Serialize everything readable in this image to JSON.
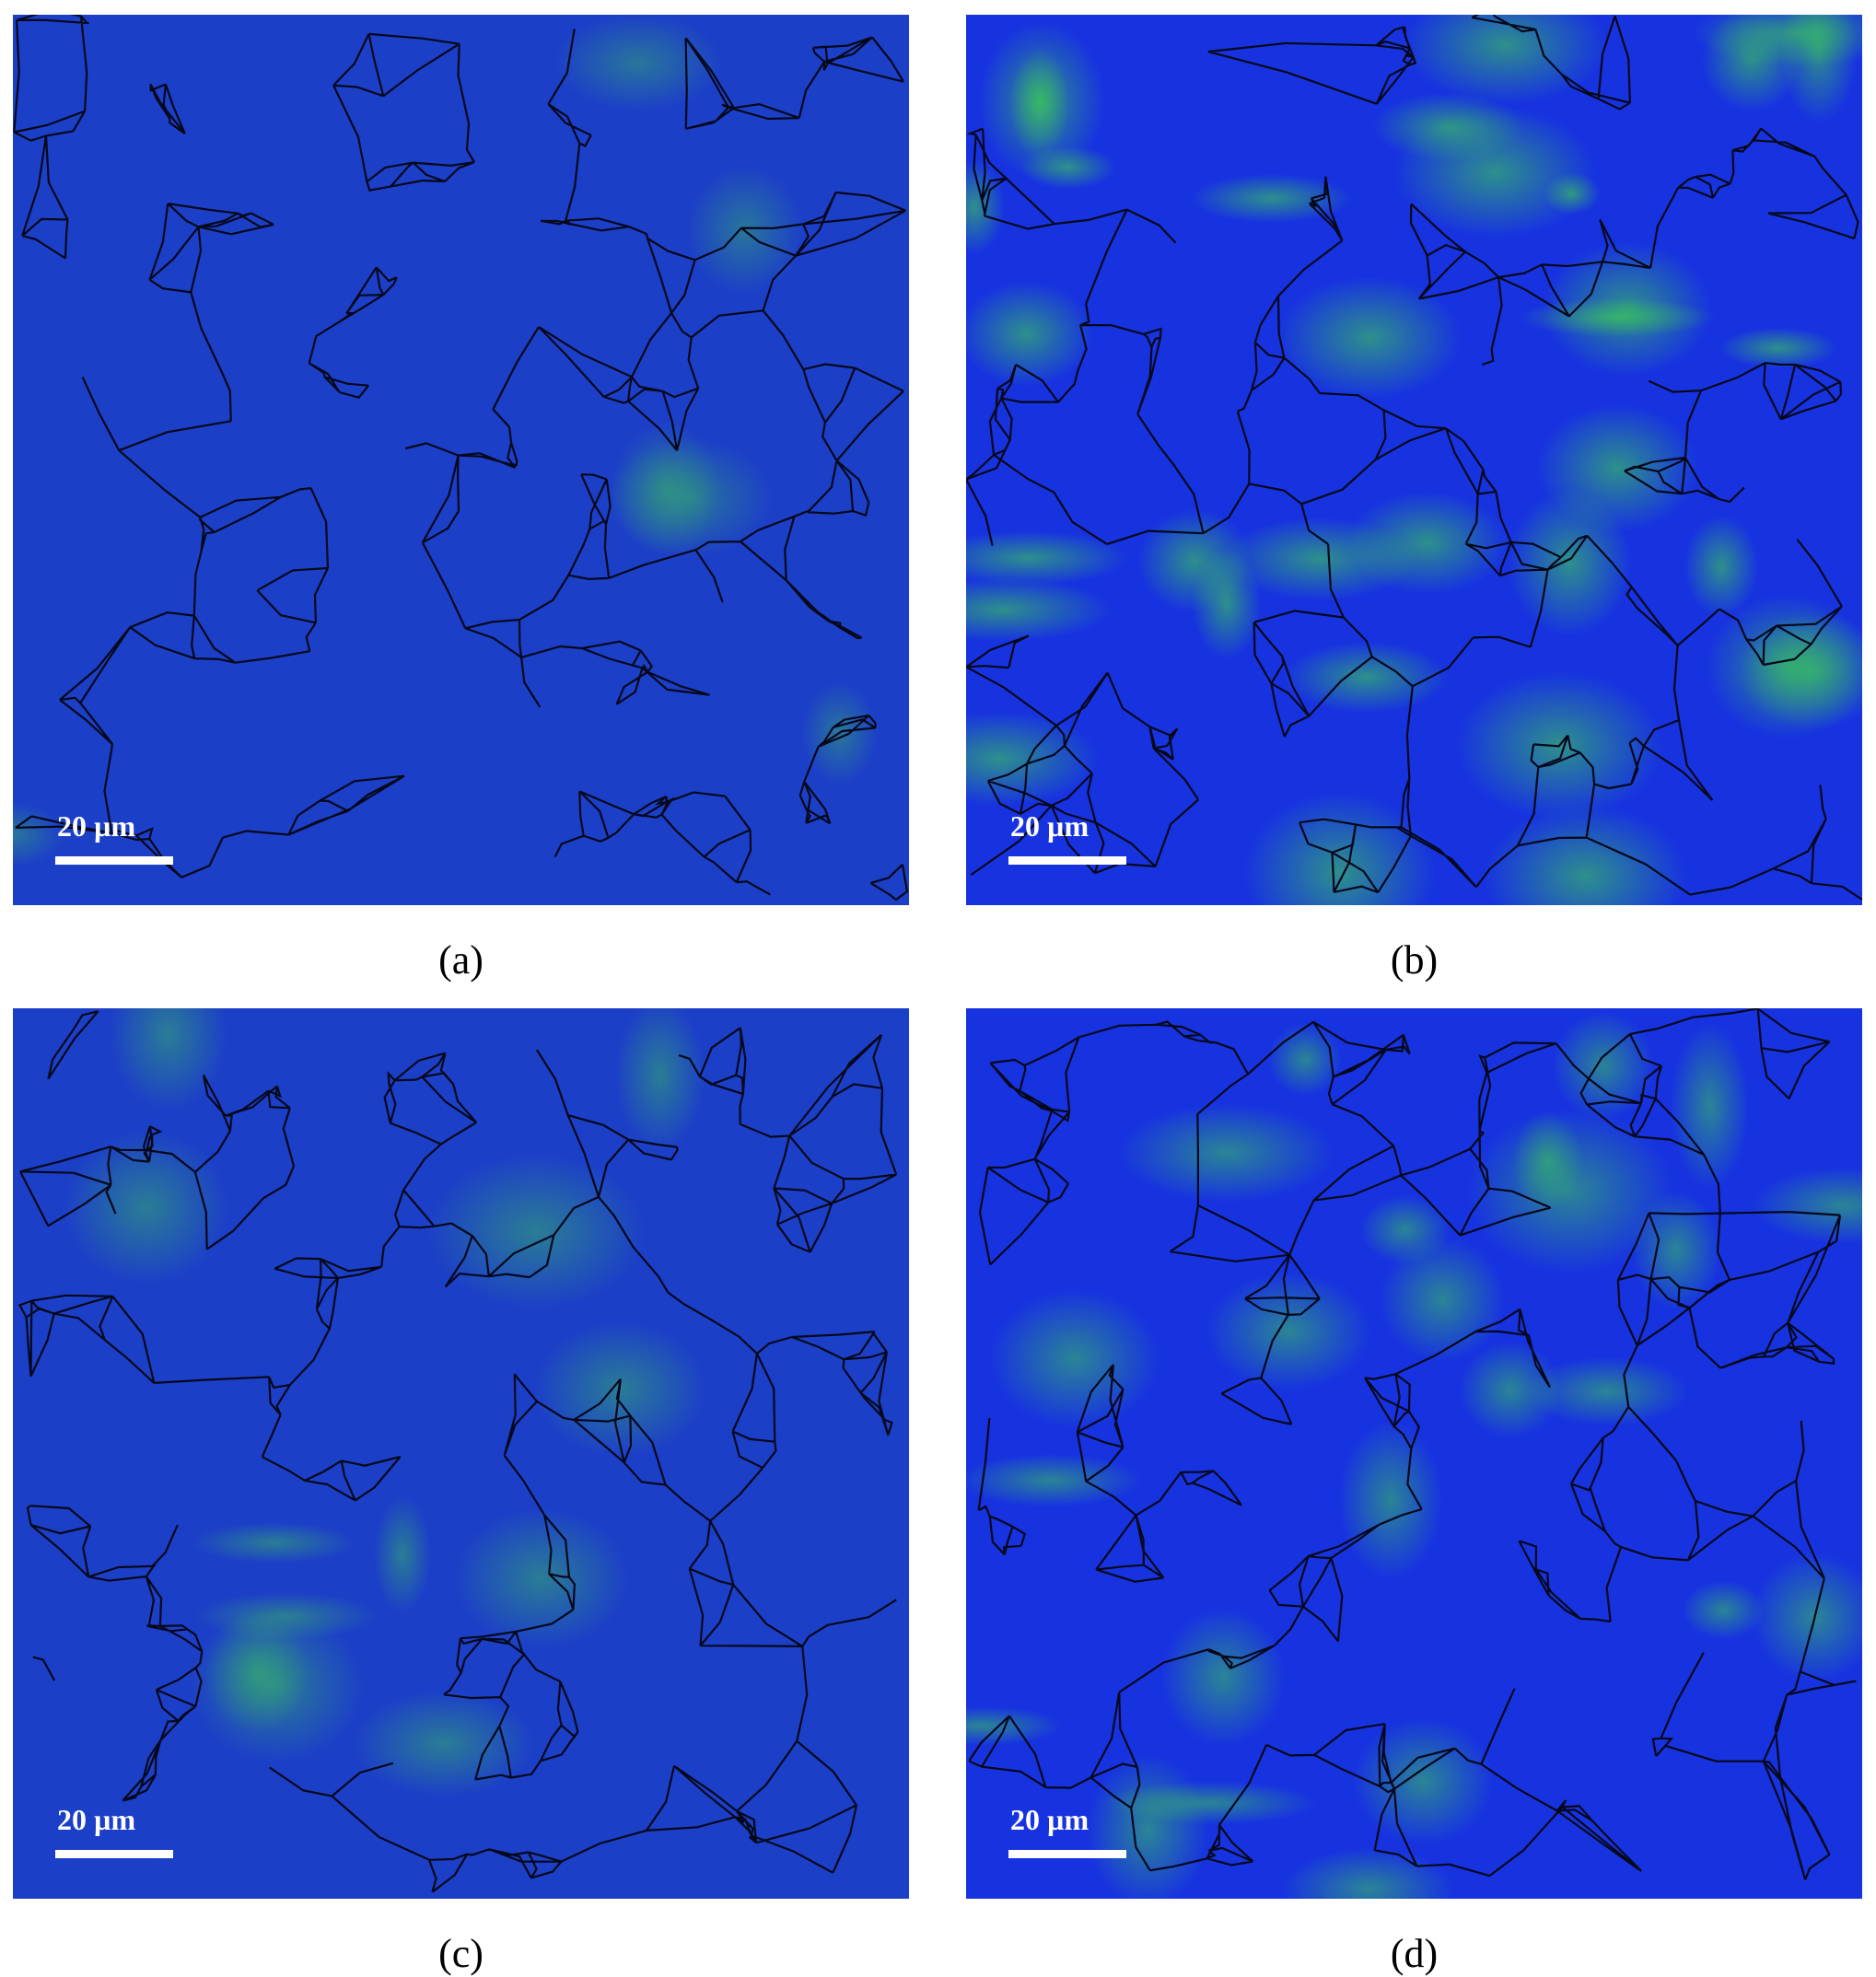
{
  "figure": {
    "panels": [
      {
        "label": "(a)",
        "scale_bar": "20 µm",
        "green_level": 0.1
      },
      {
        "label": "(b)",
        "scale_bar": "20 µm",
        "green_level": 0.55
      },
      {
        "label": "(c)",
        "scale_bar": "20 µm",
        "green_level": 0.2
      },
      {
        "label": "(d)",
        "scale_bar": "20 µm",
        "green_level": 0.4
      }
    ]
  }
}
